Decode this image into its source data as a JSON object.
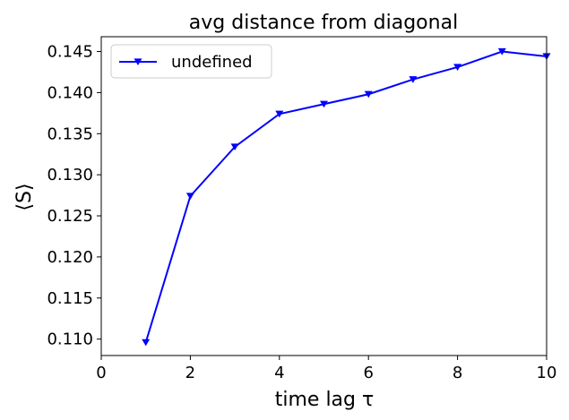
{
  "chart_data": {
    "type": "line",
    "title": "avg distance from diagonal",
    "xlabel": "time lag τ",
    "ylabel": "⟨S⟩",
    "xlim": [
      0,
      10
    ],
    "ylim": [
      0.108,
      0.1468
    ],
    "xticks": [
      0,
      2,
      4,
      6,
      8,
      10
    ],
    "xtick_labels": [
      "0",
      "2",
      "4",
      "6",
      "8",
      "10"
    ],
    "yticks": [
      0.11,
      0.115,
      0.12,
      0.125,
      0.13,
      0.135,
      0.14,
      0.145
    ],
    "ytick_labels": [
      "0.110",
      "0.115",
      "0.120",
      "0.125",
      "0.130",
      "0.135",
      "0.140",
      "0.145"
    ],
    "grid": false,
    "legend_position": "top-left",
    "series": [
      {
        "name": "undefined",
        "color": "#0000ff",
        "marker": "triangle-down",
        "x": [
          1,
          2,
          3,
          4,
          5,
          6,
          7,
          8,
          9,
          10
        ],
        "y": [
          0.1096,
          0.1274,
          0.1334,
          0.1374,
          0.1386,
          0.1398,
          0.1416,
          0.1431,
          0.145,
          0.1444
        ]
      }
    ]
  }
}
